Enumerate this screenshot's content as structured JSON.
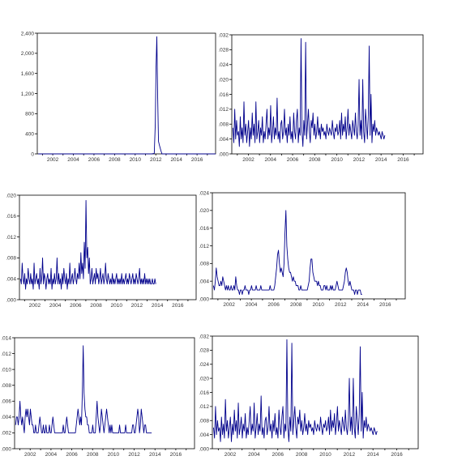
{
  "chart_data": [
    {
      "type": "line",
      "title": "",
      "series_color": "#00008b",
      "xlim": [
        2000.5,
        2017.8
      ],
      "ylim": [
        0,
        2400
      ],
      "yticks": [
        0,
        400,
        800,
        1200,
        1600,
        2000,
        2400
      ],
      "ytick_labels": [
        "0",
        "400",
        "800",
        "1,200",
        "1,600",
        "2,000",
        "2,400"
      ],
      "xticks": [
        2002,
        2004,
        2006,
        2008,
        2010,
        2012,
        2014,
        2016
      ],
      "xtick_labels": [
        "2002",
        "2004",
        "2006",
        "2008",
        "2010",
        "2012",
        "2014",
        "2016"
      ],
      "x": [
        2000.6,
        2011.6,
        2011.85,
        2011.95,
        2012.02,
        2012.1,
        2012.18,
        2012.26,
        2012.34,
        2012.42,
        2012.5,
        2012.6,
        2013.0,
        2017.8
      ],
      "y": [
        0,
        0,
        10,
        600,
        1700,
        2330,
        1150,
        250,
        180,
        120,
        60,
        0,
        0,
        0
      ]
    },
    {
      "type": "line",
      "title": "",
      "series_color": "#00008b",
      "xlim": [
        2000.5,
        2017.8
      ],
      "ylim": [
        0,
        0.032
      ],
      "yticks": [
        0,
        0.004,
        0.008,
        0.012,
        0.016,
        0.02,
        0.024,
        0.028,
        0.032
      ],
      "ytick_labels": [
        ".000",
        ".004",
        ".008",
        ".012",
        ".016",
        ".020",
        ".024",
        ".028",
        ".032"
      ],
      "xticks": [
        2002,
        2004,
        2006,
        2008,
        2010,
        2012,
        2014,
        2016
      ],
      "xtick_labels": [
        "2002",
        "2004",
        "2006",
        "2008",
        "2010",
        "2012",
        "2014",
        "2016"
      ],
      "x_start": 2000.6,
      "x_step": 0.0833,
      "values": [
        0.007,
        0.003,
        0.012,
        0.004,
        0.009,
        0.005,
        0.006,
        0.002,
        0.01,
        0.004,
        0.007,
        0.003,
        0.014,
        0.005,
        0.008,
        0.003,
        0.006,
        0.009,
        0.002,
        0.007,
        0.004,
        0.011,
        0.005,
        0.008,
        0.003,
        0.014,
        0.004,
        0.006,
        0.009,
        0.003,
        0.007,
        0.005,
        0.01,
        0.003,
        0.006,
        0.004,
        0.008,
        0.012,
        0.004,
        0.007,
        0.005,
        0.013,
        0.003,
        0.006,
        0.01,
        0.004,
        0.007,
        0.005,
        0.015,
        0.004,
        0.006,
        0.003,
        0.008,
        0.009,
        0.004,
        0.006,
        0.012,
        0.005,
        0.007,
        0.003,
        0.008,
        0.005,
        0.01,
        0.004,
        0.006,
        0.003,
        0.011,
        0.006,
        0.004,
        0.009,
        0.012,
        0.003,
        0.007,
        0.005,
        0.031,
        0.006,
        0.002,
        0.009,
        0.005,
        0.03,
        0.004,
        0.008,
        0.012,
        0.006,
        0.003,
        0.009,
        0.007,
        0.011,
        0.005,
        0.008,
        0.004,
        0.006,
        0.01,
        0.005,
        0.007,
        0.004,
        0.008,
        0.006,
        0.007,
        0.005,
        0.006,
        0.004,
        0.008,
        0.006,
        0.005,
        0.007,
        0.006,
        0.005,
        0.009,
        0.006,
        0.004,
        0.007,
        0.006,
        0.008,
        0.005,
        0.006,
        0.009,
        0.004,
        0.011,
        0.005,
        0.008,
        0.006,
        0.01,
        0.004,
        0.007,
        0.012,
        0.005,
        0.008,
        0.006,
        0.004,
        0.009,
        0.007,
        0.005,
        0.011,
        0.006,
        0.004,
        0.008,
        0.02,
        0.005,
        0.009,
        0.004,
        0.02,
        0.006,
        0.003,
        0.012,
        0.008,
        0.004,
        0.01,
        0.029,
        0.005,
        0.016,
        0.003,
        0.008,
        0.006,
        0.009,
        0.005,
        0.007,
        0.006,
        0.005,
        0.006,
        0.005,
        0.004,
        0.006,
        0.005,
        0.004,
        0.005
      ]
    },
    {
      "type": "line",
      "title": "",
      "series_color": "#00008b",
      "xlim": [
        2000.5,
        2017.8
      ],
      "ylim": [
        0,
        0.02
      ],
      "yticks": [
        0,
        0.004,
        0.008,
        0.012,
        0.016,
        0.02
      ],
      "ytick_labels": [
        ".000",
        ".004",
        ".008",
        ".012",
        ".016",
        ".020"
      ],
      "xticks": [
        2002,
        2004,
        2006,
        2008,
        2010,
        2012,
        2014,
        2016
      ],
      "xtick_labels": [
        "2002",
        "2004",
        "2006",
        "2008",
        "2010",
        "2012",
        "2014",
        "2016"
      ],
      "x_start": 2000.6,
      "x_step": 0.0833,
      "values": [
        0.004,
        0.003,
        0.007,
        0.004,
        0.003,
        0.005,
        0.002,
        0.004,
        0.003,
        0.006,
        0.004,
        0.003,
        0.005,
        0.003,
        0.004,
        0.002,
        0.007,
        0.003,
        0.004,
        0.005,
        0.003,
        0.004,
        0.002,
        0.006,
        0.003,
        0.004,
        0.008,
        0.003,
        0.005,
        0.004,
        0.002,
        0.004,
        0.005,
        0.003,
        0.004,
        0.003,
        0.006,
        0.002,
        0.004,
        0.003,
        0.005,
        0.003,
        0.004,
        0.008,
        0.003,
        0.005,
        0.003,
        0.004,
        0.002,
        0.005,
        0.003,
        0.006,
        0.004,
        0.003,
        0.005,
        0.002,
        0.004,
        0.003,
        0.007,
        0.003,
        0.004,
        0.005,
        0.003,
        0.004,
        0.006,
        0.004,
        0.003,
        0.005,
        0.004,
        0.007,
        0.004,
        0.009,
        0.005,
        0.007,
        0.004,
        0.011,
        0.006,
        0.019,
        0.008,
        0.01,
        0.005,
        0.008,
        0.003,
        0.004,
        0.006,
        0.003,
        0.004,
        0.005,
        0.003,
        0.006,
        0.004,
        0.005,
        0.003,
        0.004,
        0.006,
        0.003,
        0.004,
        0.005,
        0.003,
        0.004,
        0.007,
        0.004,
        0.003,
        0.005,
        0.004,
        0.003,
        0.004,
        0.003,
        0.005,
        0.003,
        0.004,
        0.003,
        0.004,
        0.005,
        0.003,
        0.004,
        0.003,
        0.004,
        0.003,
        0.005,
        0.003,
        0.004,
        0.003,
        0.004,
        0.005,
        0.003,
        0.004,
        0.003,
        0.005,
        0.004,
        0.003,
        0.004,
        0.005,
        0.003,
        0.004,
        0.003,
        0.005,
        0.004,
        0.003,
        0.004,
        0.006,
        0.003,
        0.004,
        0.003,
        0.004,
        0.003,
        0.005,
        0.003,
        0.004,
        0.003,
        0.004,
        0.003,
        0.004,
        0.003,
        0.003,
        0.004,
        0.003,
        0.003,
        0.004,
        0.003
      ]
    },
    {
      "type": "line",
      "title": "",
      "series_color": "#00008b",
      "xlim": [
        2000.5,
        2017.8
      ],
      "ylim": [
        0,
        0.024
      ],
      "yticks": [
        0,
        0.004,
        0.008,
        0.012,
        0.016,
        0.02,
        0.024
      ],
      "ytick_labels": [
        ".000",
        ".004",
        ".008",
        ".012",
        ".016",
        ".020",
        ".024"
      ],
      "xticks": [
        2002,
        2004,
        2006,
        2008,
        2010,
        2012,
        2014,
        2016
      ],
      "xtick_labels": [
        "2002",
        "2004",
        "2006",
        "2008",
        "2010",
        "2012",
        "2014",
        "2016"
      ],
      "x_start": 2000.6,
      "x_step": 0.0833,
      "values": [
        0.003,
        0.002,
        0.004,
        0.007,
        0.005,
        0.004,
        0.003,
        0.003,
        0.004,
        0.003,
        0.005,
        0.004,
        0.003,
        0.002,
        0.003,
        0.002,
        0.003,
        0.002,
        0.002,
        0.003,
        0.002,
        0.002,
        0.003,
        0.002,
        0.005,
        0.003,
        0.002,
        0.002,
        0.001,
        0.002,
        0.002,
        0.001,
        0.002,
        0.002,
        0.003,
        0.002,
        0.002,
        0.002,
        0.001,
        0.002,
        0.002,
        0.003,
        0.002,
        0.002,
        0.002,
        0.002,
        0.003,
        0.002,
        0.002,
        0.002,
        0.002,
        0.003,
        0.002,
        0.002,
        0.002,
        0.002,
        0.002,
        0.002,
        0.002,
        0.002,
        0.002,
        0.003,
        0.002,
        0.002,
        0.002,
        0.002,
        0.003,
        0.005,
        0.007,
        0.01,
        0.011,
        0.008,
        0.006,
        0.007,
        0.006,
        0.005,
        0.008,
        0.015,
        0.02,
        0.012,
        0.009,
        0.007,
        0.006,
        0.006,
        0.005,
        0.004,
        0.005,
        0.004,
        0.004,
        0.003,
        0.003,
        0.003,
        0.002,
        0.002,
        0.003,
        0.002,
        0.002,
        0.002,
        0.002,
        0.002,
        0.002,
        0.002,
        0.003,
        0.004,
        0.007,
        0.009,
        0.009,
        0.006,
        0.005,
        0.004,
        0.004,
        0.004,
        0.003,
        0.004,
        0.003,
        0.003,
        0.002,
        0.002,
        0.002,
        0.003,
        0.003,
        0.002,
        0.003,
        0.002,
        0.002,
        0.002,
        0.003,
        0.002,
        0.003,
        0.002,
        0.002,
        0.002,
        0.003,
        0.004,
        0.003,
        0.002,
        0.002,
        0.002,
        0.002,
        0.002,
        0.003,
        0.004,
        0.006,
        0.007,
        0.006,
        0.004,
        0.003,
        0.004,
        0.003,
        0.002,
        0.002,
        0.002,
        0.001,
        0.002,
        0.002,
        0.001,
        0.002,
        0.002,
        0.002,
        0.001,
        0.001
      ]
    },
    {
      "type": "line",
      "title": "",
      "series_color": "#00008b",
      "xlim": [
        2000.5,
        2017.8
      ],
      "ylim": [
        0,
        0.014
      ],
      "yticks": [
        0,
        0.002,
        0.004,
        0.006,
        0.008,
        0.01,
        0.012,
        0.014
      ],
      "ytick_labels": [
        ".000",
        ".002",
        ".004",
        ".006",
        ".008",
        ".010",
        ".012",
        ".014"
      ],
      "xticks": [
        2002,
        2004,
        2006,
        2008,
        2010,
        2012,
        2014,
        2016
      ],
      "xtick_labels": [
        "2002",
        "2004",
        "2006",
        "2008",
        "2010",
        "2012",
        "2014",
        "2016"
      ],
      "x_start": 2000.6,
      "x_step": 0.0833,
      "values": [
        0.003,
        0.004,
        0.004,
        0.003,
        0.004,
        0.006,
        0.004,
        0.003,
        0.004,
        0.003,
        0.002,
        0.004,
        0.005,
        0.004,
        0.005,
        0.004,
        0.003,
        0.005,
        0.004,
        0.003,
        0.003,
        0.002,
        0.002,
        0.003,
        0.002,
        0.002,
        0.002,
        0.003,
        0.004,
        0.003,
        0.002,
        0.002,
        0.003,
        0.002,
        0.002,
        0.003,
        0.002,
        0.002,
        0.002,
        0.003,
        0.002,
        0.002,
        0.003,
        0.004,
        0.003,
        0.002,
        0.002,
        0.002,
        0.002,
        0.002,
        0.002,
        0.002,
        0.002,
        0.002,
        0.002,
        0.003,
        0.002,
        0.002,
        0.003,
        0.004,
        0.003,
        0.002,
        0.002,
        0.002,
        0.002,
        0.002,
        0.002,
        0.002,
        0.002,
        0.002,
        0.003,
        0.004,
        0.005,
        0.004,
        0.003,
        0.004,
        0.003,
        0.007,
        0.013,
        0.007,
        0.005,
        0.004,
        0.004,
        0.003,
        0.003,
        0.002,
        0.002,
        0.002,
        0.002,
        0.003,
        0.002,
        0.002,
        0.002,
        0.004,
        0.006,
        0.004,
        0.003,
        0.002,
        0.003,
        0.005,
        0.004,
        0.003,
        0.002,
        0.003,
        0.004,
        0.005,
        0.004,
        0.003,
        0.002,
        0.003,
        0.002,
        0.003,
        0.002,
        0.002,
        0.002,
        0.002,
        0.002,
        0.002,
        0.002,
        0.002,
        0.003,
        0.002,
        0.002,
        0.002,
        0.002,
        0.002,
        0.002,
        0.003,
        0.002,
        0.002,
        0.002,
        0.002,
        0.002,
        0.002,
        0.002,
        0.003,
        0.003,
        0.002,
        0.002,
        0.003,
        0.004,
        0.005,
        0.004,
        0.002,
        0.003,
        0.005,
        0.004,
        0.003,
        0.002,
        0.003,
        0.003,
        0.002,
        0.002,
        0.002,
        0.002,
        0.002,
        0.002,
        0.002
      ]
    },
    {
      "type": "line",
      "title": "",
      "series_color": "#00008b",
      "xlim": [
        2000.5,
        2017.8
      ],
      "ylim": [
        0,
        0.032
      ],
      "yticks": [
        0,
        0.004,
        0.008,
        0.012,
        0.016,
        0.02,
        0.024,
        0.028,
        0.032
      ],
      "ytick_labels": [
        ".000",
        ".004",
        ".008",
        ".012",
        ".016",
        ".020",
        ".024",
        ".028",
        ".032"
      ],
      "xticks": [
        2002,
        2004,
        2006,
        2008,
        2010,
        2012,
        2014,
        2016
      ],
      "xtick_labels": [
        "2002",
        "2004",
        "2006",
        "2008",
        "2010",
        "2012",
        "2014",
        "2016"
      ],
      "x_start": 2000.6,
      "x_step": 0.0833,
      "values": [
        0.006,
        0.003,
        0.012,
        0.004,
        0.008,
        0.005,
        0.006,
        0.002,
        0.009,
        0.004,
        0.007,
        0.003,
        0.014,
        0.005,
        0.008,
        0.003,
        0.006,
        0.009,
        0.002,
        0.007,
        0.004,
        0.011,
        0.005,
        0.008,
        0.003,
        0.013,
        0.004,
        0.006,
        0.009,
        0.003,
        0.007,
        0.005,
        0.01,
        0.003,
        0.006,
        0.004,
        0.008,
        0.012,
        0.004,
        0.007,
        0.005,
        0.013,
        0.003,
        0.006,
        0.01,
        0.004,
        0.007,
        0.005,
        0.015,
        0.004,
        0.006,
        0.003,
        0.008,
        0.009,
        0.004,
        0.006,
        0.012,
        0.005,
        0.007,
        0.003,
        0.008,
        0.005,
        0.01,
        0.004,
        0.006,
        0.003,
        0.011,
        0.006,
        0.004,
        0.009,
        0.012,
        0.003,
        0.007,
        0.005,
        0.031,
        0.006,
        0.002,
        0.009,
        0.005,
        0.03,
        0.004,
        0.008,
        0.012,
        0.006,
        0.003,
        0.009,
        0.007,
        0.011,
        0.005,
        0.008,
        0.004,
        0.006,
        0.01,
        0.005,
        0.007,
        0.004,
        0.008,
        0.006,
        0.007,
        0.005,
        0.006,
        0.004,
        0.008,
        0.006,
        0.005,
        0.007,
        0.006,
        0.005,
        0.009,
        0.006,
        0.004,
        0.007,
        0.006,
        0.008,
        0.005,
        0.006,
        0.009,
        0.004,
        0.011,
        0.005,
        0.008,
        0.006,
        0.01,
        0.004,
        0.007,
        0.012,
        0.005,
        0.008,
        0.006,
        0.004,
        0.009,
        0.007,
        0.005,
        0.011,
        0.006,
        0.004,
        0.008,
        0.02,
        0.005,
        0.009,
        0.004,
        0.02,
        0.006,
        0.003,
        0.012,
        0.008,
        0.004,
        0.01,
        0.029,
        0.005,
        0.016,
        0.003,
        0.008,
        0.006,
        0.009,
        0.005,
        0.007,
        0.006,
        0.005,
        0.006,
        0.005,
        0.004,
        0.006,
        0.005,
        0.004,
        0.005
      ]
    }
  ]
}
